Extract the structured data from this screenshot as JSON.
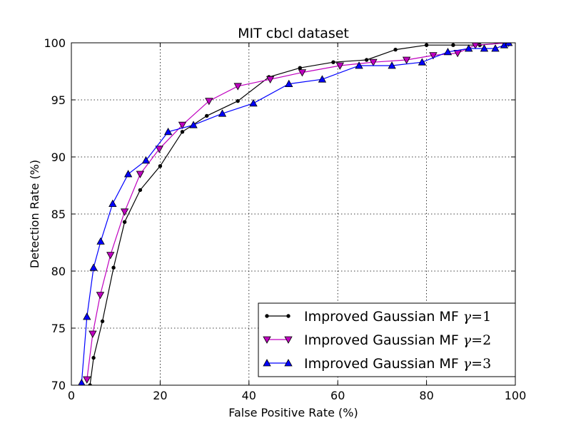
{
  "chart_data": {
    "type": "line",
    "title": "MIT cbcl dataset",
    "xlabel": "False Positive Rate (%)",
    "ylabel": "Detection Rate (%)",
    "xlim": [
      0,
      100
    ],
    "ylim": [
      70,
      100
    ],
    "xticks": [
      "0",
      "20",
      "40",
      "60",
      "80",
      "100"
    ],
    "yticks": [
      "70",
      "75",
      "80",
      "85",
      "90",
      "95",
      "100"
    ],
    "grid": true,
    "legend_position": "lower-right",
    "series": [
      {
        "name": "Improved Gaussian MF γ=1",
        "color": "#000000",
        "marker": "dot",
        "x": [
          4.2,
          5.0,
          7.0,
          9.5,
          12.0,
          15.5,
          20.0,
          25.0,
          30.5,
          37.5,
          44.5,
          51.5,
          59.0,
          66.5,
          73.0,
          80.0,
          86.0,
          92.0,
          98.0
        ],
        "y": [
          70.0,
          72.4,
          75.6,
          80.3,
          84.3,
          87.1,
          89.2,
          92.2,
          93.6,
          94.9,
          97.0,
          97.8,
          98.3,
          98.5,
          99.4,
          99.8,
          99.8,
          99.8,
          100.0
        ]
      },
      {
        "name": "Improved Gaussian MF γ=2",
        "color": "#bf00bf",
        "marker": "triangle-down",
        "x": [
          3.5,
          4.8,
          6.5,
          8.8,
          12.0,
          15.5,
          19.8,
          25.0,
          31.0,
          37.5,
          44.8,
          52.0,
          60.5,
          68.0,
          75.5,
          81.5,
          87.0,
          91.0,
          98.5
        ],
        "y": [
          70.5,
          74.5,
          77.9,
          81.4,
          85.2,
          88.5,
          90.7,
          92.8,
          94.9,
          96.2,
          96.8,
          97.4,
          98.0,
          98.3,
          98.5,
          98.9,
          99.1,
          99.8,
          100.0
        ]
      },
      {
        "name": "Improved Gaussian MF γ=3",
        "color": "#0000ff",
        "marker": "triangle-up",
        "x": [
          2.3,
          3.5,
          5.0,
          6.6,
          9.3,
          12.8,
          16.8,
          21.8,
          27.5,
          34.0,
          41.0,
          49.0,
          56.5,
          64.8,
          72.2,
          79.0,
          84.8,
          89.5,
          93.0,
          95.5,
          97.5,
          98.5
        ],
        "y": [
          70.2,
          76.0,
          80.3,
          82.6,
          85.9,
          88.5,
          89.7,
          92.2,
          92.8,
          93.8,
          94.7,
          96.4,
          96.8,
          98.0,
          98.0,
          98.3,
          99.2,
          99.5,
          99.5,
          99.5,
          99.8,
          100.0
        ]
      }
    ],
    "legend": [
      {
        "prefix": "Improved Gaussian MF ",
        "symbol": "γ",
        "eq": "=1"
      },
      {
        "prefix": "Improved Gaussian MF ",
        "symbol": "γ",
        "eq": "=2"
      },
      {
        "prefix": "Improved Gaussian MF ",
        "symbol": "γ",
        "eq": "=3"
      }
    ]
  }
}
